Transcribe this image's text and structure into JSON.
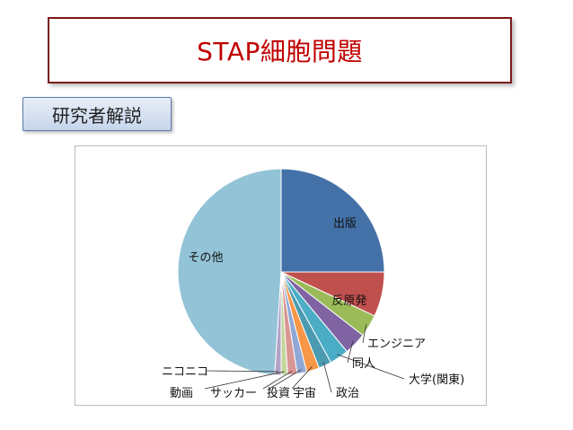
{
  "header": {
    "title": "STAP細胞問題"
  },
  "subheader": {
    "label": "研究者解説"
  },
  "colors": {
    "title_text": "#c00000",
    "title_border": "#7b1a1a",
    "tag_bg": "#c6d5ec"
  },
  "chart_data": {
    "type": "pie",
    "title": "",
    "slices": [
      {
        "label": "出版",
        "value": 25.0,
        "color": "#4472a8"
      },
      {
        "label": "反原発",
        "value": 7.0,
        "color": "#c0504d"
      },
      {
        "label": "エンジニア",
        "value": 3.5,
        "color": "#9bbb59"
      },
      {
        "label": "同人",
        "value": 3.5,
        "color": "#7f63a2"
      },
      {
        "label": "大学(関東)",
        "value": 3.0,
        "color": "#4bacc6"
      },
      {
        "label": "政治",
        "value": 2.0,
        "color": "#4a9bb0"
      },
      {
        "label": "宇宙",
        "value": 2.0,
        "color": "#f79646"
      },
      {
        "label": "投資",
        "value": 1.5,
        "color": "#8fa8d6"
      },
      {
        "label": "サッカー",
        "value": 1.5,
        "color": "#d99694"
      },
      {
        "label": "動画",
        "value": 1.0,
        "color": "#c3d69b"
      },
      {
        "label": "ニコニコ",
        "value": 1.0,
        "color": "#b2a2c7"
      },
      {
        "label": "その他",
        "value": 49.0,
        "color": "#93c3d7"
      }
    ]
  }
}
